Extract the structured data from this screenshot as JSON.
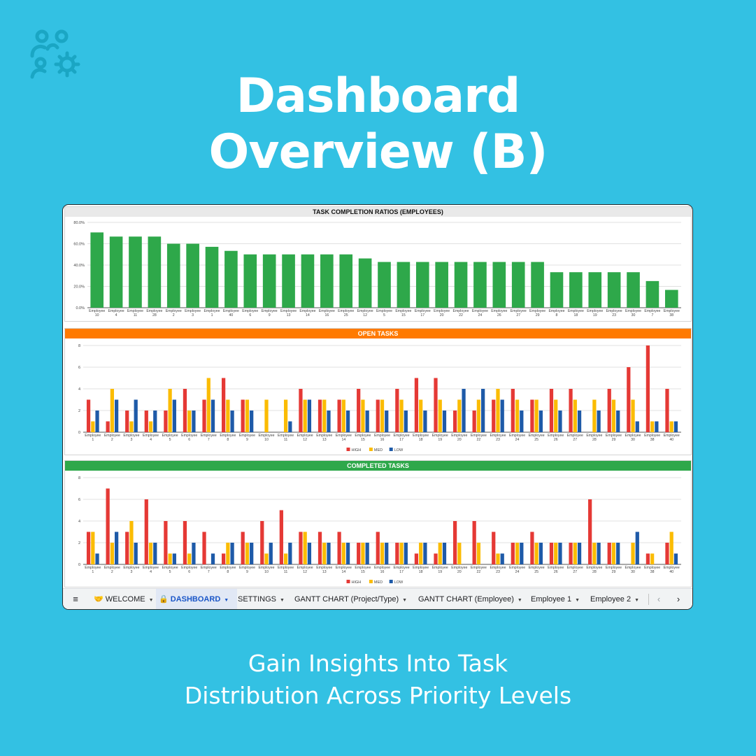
{
  "headline": {
    "line1": "Dashboard",
    "line2": "Overview (B)"
  },
  "subline": {
    "line1": "Gain Insights Into Task",
    "line2": "Distribution Across Priority Levels"
  },
  "logo_icon": "people-gear-icon",
  "colors": {
    "background": "#33c1e3",
    "bar_green": "#2ea84a",
    "high": "#e53935",
    "med": "#fbbc04",
    "low": "#1e5aa8",
    "open_header": "#ff7a00",
    "completed_header": "#2ea84a"
  },
  "tabs": {
    "menu_icon": "hamburger-menu-icon",
    "welcome_icon": "handshake-icon",
    "welcome": "WELCOME",
    "dashboard_icon": "lock-icon",
    "dashboard": "DASHBOARD",
    "settings": "SETTINGS",
    "gantt_project": "GANTT CHART (Project/Type)",
    "gantt_employee": "GANTT CHART (Employee)",
    "employee1": "Employee 1",
    "employee2": "Employee 2",
    "prev": "‹",
    "next": "›"
  },
  "chart_data": [
    {
      "type": "bar",
      "title": "TASK COMPLETION RATIOS (EMPLOYEES)",
      "ylim": [
        0,
        80
      ],
      "yticks": [
        "0.0%",
        "20.0%",
        "40.0%",
        "60.0%",
        "80.0%"
      ],
      "grid": true,
      "categories": [
        [
          "Employee",
          "10"
        ],
        [
          "Employee",
          "4"
        ],
        [
          "Employee",
          "11"
        ],
        [
          "Employee",
          "28"
        ],
        [
          "Employee",
          "2"
        ],
        [
          "Employee",
          "3"
        ],
        [
          "Employee",
          "1"
        ],
        [
          "Employee",
          "40"
        ],
        [
          "Employee",
          "6"
        ],
        [
          "Employee",
          "9"
        ],
        [
          "Employee",
          "13"
        ],
        [
          "Employee",
          "14"
        ],
        [
          "Employee",
          "16"
        ],
        [
          "Employee",
          "25"
        ],
        [
          "Employee",
          "12"
        ],
        [
          "Employee",
          "5"
        ],
        [
          "Employee",
          "15"
        ],
        [
          "Employee",
          "17"
        ],
        [
          "Employee",
          "20"
        ],
        [
          "Employee",
          "22"
        ],
        [
          "Employee",
          "24"
        ],
        [
          "Employee",
          "26"
        ],
        [
          "Employee",
          "27"
        ],
        [
          "Employee",
          "29"
        ],
        [
          "Employee",
          "8"
        ],
        [
          "Employee",
          "18"
        ],
        [
          "Employee",
          "19"
        ],
        [
          "Employee",
          "23"
        ],
        [
          "Employee",
          "30"
        ],
        [
          "Employee",
          "7"
        ],
        [
          "Employee",
          "38"
        ]
      ],
      "values": [
        70.6,
        66.7,
        66.7,
        66.7,
        60.0,
        60.0,
        57.1,
        53.3,
        50.0,
        50.0,
        50.0,
        50.0,
        50.0,
        50.0,
        46.2,
        42.9,
        42.9,
        42.9,
        42.9,
        42.9,
        42.9,
        42.9,
        42.9,
        42.9,
        33.3,
        33.3,
        33.3,
        33.3,
        33.3,
        25.0,
        16.7
      ]
    },
    {
      "type": "bar",
      "title": "OPEN TASKS",
      "ylim": [
        0,
        8
      ],
      "yticks": [
        "0",
        "2",
        "4",
        "6",
        "8"
      ],
      "grid": true,
      "legend": "bottom",
      "categories": [
        [
          "Employee",
          "1"
        ],
        [
          "Employee",
          "2"
        ],
        [
          "Employee",
          "3"
        ],
        [
          "Employee",
          "4"
        ],
        [
          "Employee",
          "5"
        ],
        [
          "Employee",
          "6"
        ],
        [
          "Employee",
          "7"
        ],
        [
          "Employee",
          "8"
        ],
        [
          "Employee",
          "9"
        ],
        [
          "Employee",
          "10"
        ],
        [
          "Employee",
          "11"
        ],
        [
          "Employee",
          "12"
        ],
        [
          "Employee",
          "13"
        ],
        [
          "Employee",
          "14"
        ],
        [
          "Employee",
          "15"
        ],
        [
          "Employee",
          "16"
        ],
        [
          "Employee",
          "17"
        ],
        [
          "Employee",
          "18"
        ],
        [
          "Employee",
          "19"
        ],
        [
          "Employee",
          "20"
        ],
        [
          "Employee",
          "22"
        ],
        [
          "Employee",
          "23"
        ],
        [
          "Employee",
          "24"
        ],
        [
          "Employee",
          "25"
        ],
        [
          "Employee",
          "26"
        ],
        [
          "Employee",
          "27"
        ],
        [
          "Employee",
          "28"
        ],
        [
          "Employee",
          "29"
        ],
        [
          "Employee",
          "30"
        ],
        [
          "Employee",
          "38"
        ],
        [
          "Employee",
          "40"
        ]
      ],
      "series": [
        {
          "name": "HIGH",
          "values": [
            3,
            1,
            2,
            2,
            2,
            4,
            3,
            5,
            3,
            0,
            0,
            4,
            3,
            3,
            4,
            3,
            4,
            5,
            5,
            2,
            2,
            3,
            4,
            3,
            4,
            4,
            0,
            4,
            6,
            8,
            4
          ]
        },
        {
          "name": "MED",
          "values": [
            1,
            4,
            1,
            1,
            4,
            2,
            5,
            3,
            3,
            3,
            3,
            3,
            3,
            3,
            3,
            3,
            3,
            3,
            3,
            3,
            3,
            4,
            3,
            3,
            3,
            3,
            3,
            3,
            3,
            1,
            1
          ]
        },
        {
          "name": "LOW",
          "values": [
            2,
            3,
            3,
            2,
            3,
            2,
            3,
            2,
            2,
            0,
            1,
            3,
            2,
            2,
            2,
            2,
            2,
            2,
            2,
            4,
            4,
            3,
            2,
            2,
            2,
            2,
            2,
            2,
            1,
            1,
            1
          ]
        }
      ]
    },
    {
      "type": "bar",
      "title": "COMPLETED TASKS",
      "ylim": [
        0,
        8
      ],
      "yticks": [
        "0",
        "2",
        "4",
        "6",
        "8"
      ],
      "grid": true,
      "legend": "bottom",
      "categories": [
        [
          "Employee",
          "1"
        ],
        [
          "Employee",
          "2"
        ],
        [
          "Employee",
          "3"
        ],
        [
          "Employee",
          "4"
        ],
        [
          "Employee",
          "5"
        ],
        [
          "Employee",
          "6"
        ],
        [
          "Employee",
          "7"
        ],
        [
          "Employee",
          "8"
        ],
        [
          "Employee",
          "9"
        ],
        [
          "Employee",
          "10"
        ],
        [
          "Employee",
          "11"
        ],
        [
          "Employee",
          "12"
        ],
        [
          "Employee",
          "13"
        ],
        [
          "Employee",
          "14"
        ],
        [
          "Employee",
          "15"
        ],
        [
          "Employee",
          "16"
        ],
        [
          "Employee",
          "17"
        ],
        [
          "Employee",
          "18"
        ],
        [
          "Employee",
          "19"
        ],
        [
          "Employee",
          "20"
        ],
        [
          "Employee",
          "22"
        ],
        [
          "Employee",
          "23"
        ],
        [
          "Employee",
          "24"
        ],
        [
          "Employee",
          "25"
        ],
        [
          "Employee",
          "26"
        ],
        [
          "Employee",
          "27"
        ],
        [
          "Employee",
          "28"
        ],
        [
          "Employee",
          "29"
        ],
        [
          "Employee",
          "30"
        ],
        [
          "Employee",
          "38"
        ],
        [
          "Employee",
          "40"
        ]
      ],
      "series": [
        {
          "name": "HIGH",
          "values": [
            3,
            7,
            3,
            6,
            4,
            4,
            3,
            1,
            3,
            4,
            5,
            3,
            3,
            3,
            2,
            3,
            2,
            1,
            1,
            4,
            4,
            3,
            2,
            3,
            2,
            2,
            6,
            2,
            0,
            1,
            2
          ]
        },
        {
          "name": "MED",
          "values": [
            3,
            2,
            4,
            2,
            1,
            1,
            0,
            2,
            2,
            1,
            1,
            3,
            2,
            2,
            2,
            2,
            2,
            2,
            2,
            2,
            2,
            1,
            2,
            2,
            2,
            2,
            2,
            2,
            2,
            1,
            3
          ]
        },
        {
          "name": "LOW",
          "values": [
            1,
            3,
            2,
            2,
            1,
            2,
            1,
            2,
            2,
            2,
            2,
            2,
            2,
            2,
            2,
            2,
            2,
            2,
            2,
            0,
            0,
            1,
            2,
            2,
            2,
            2,
            2,
            2,
            3,
            0,
            1
          ]
        }
      ]
    }
  ]
}
